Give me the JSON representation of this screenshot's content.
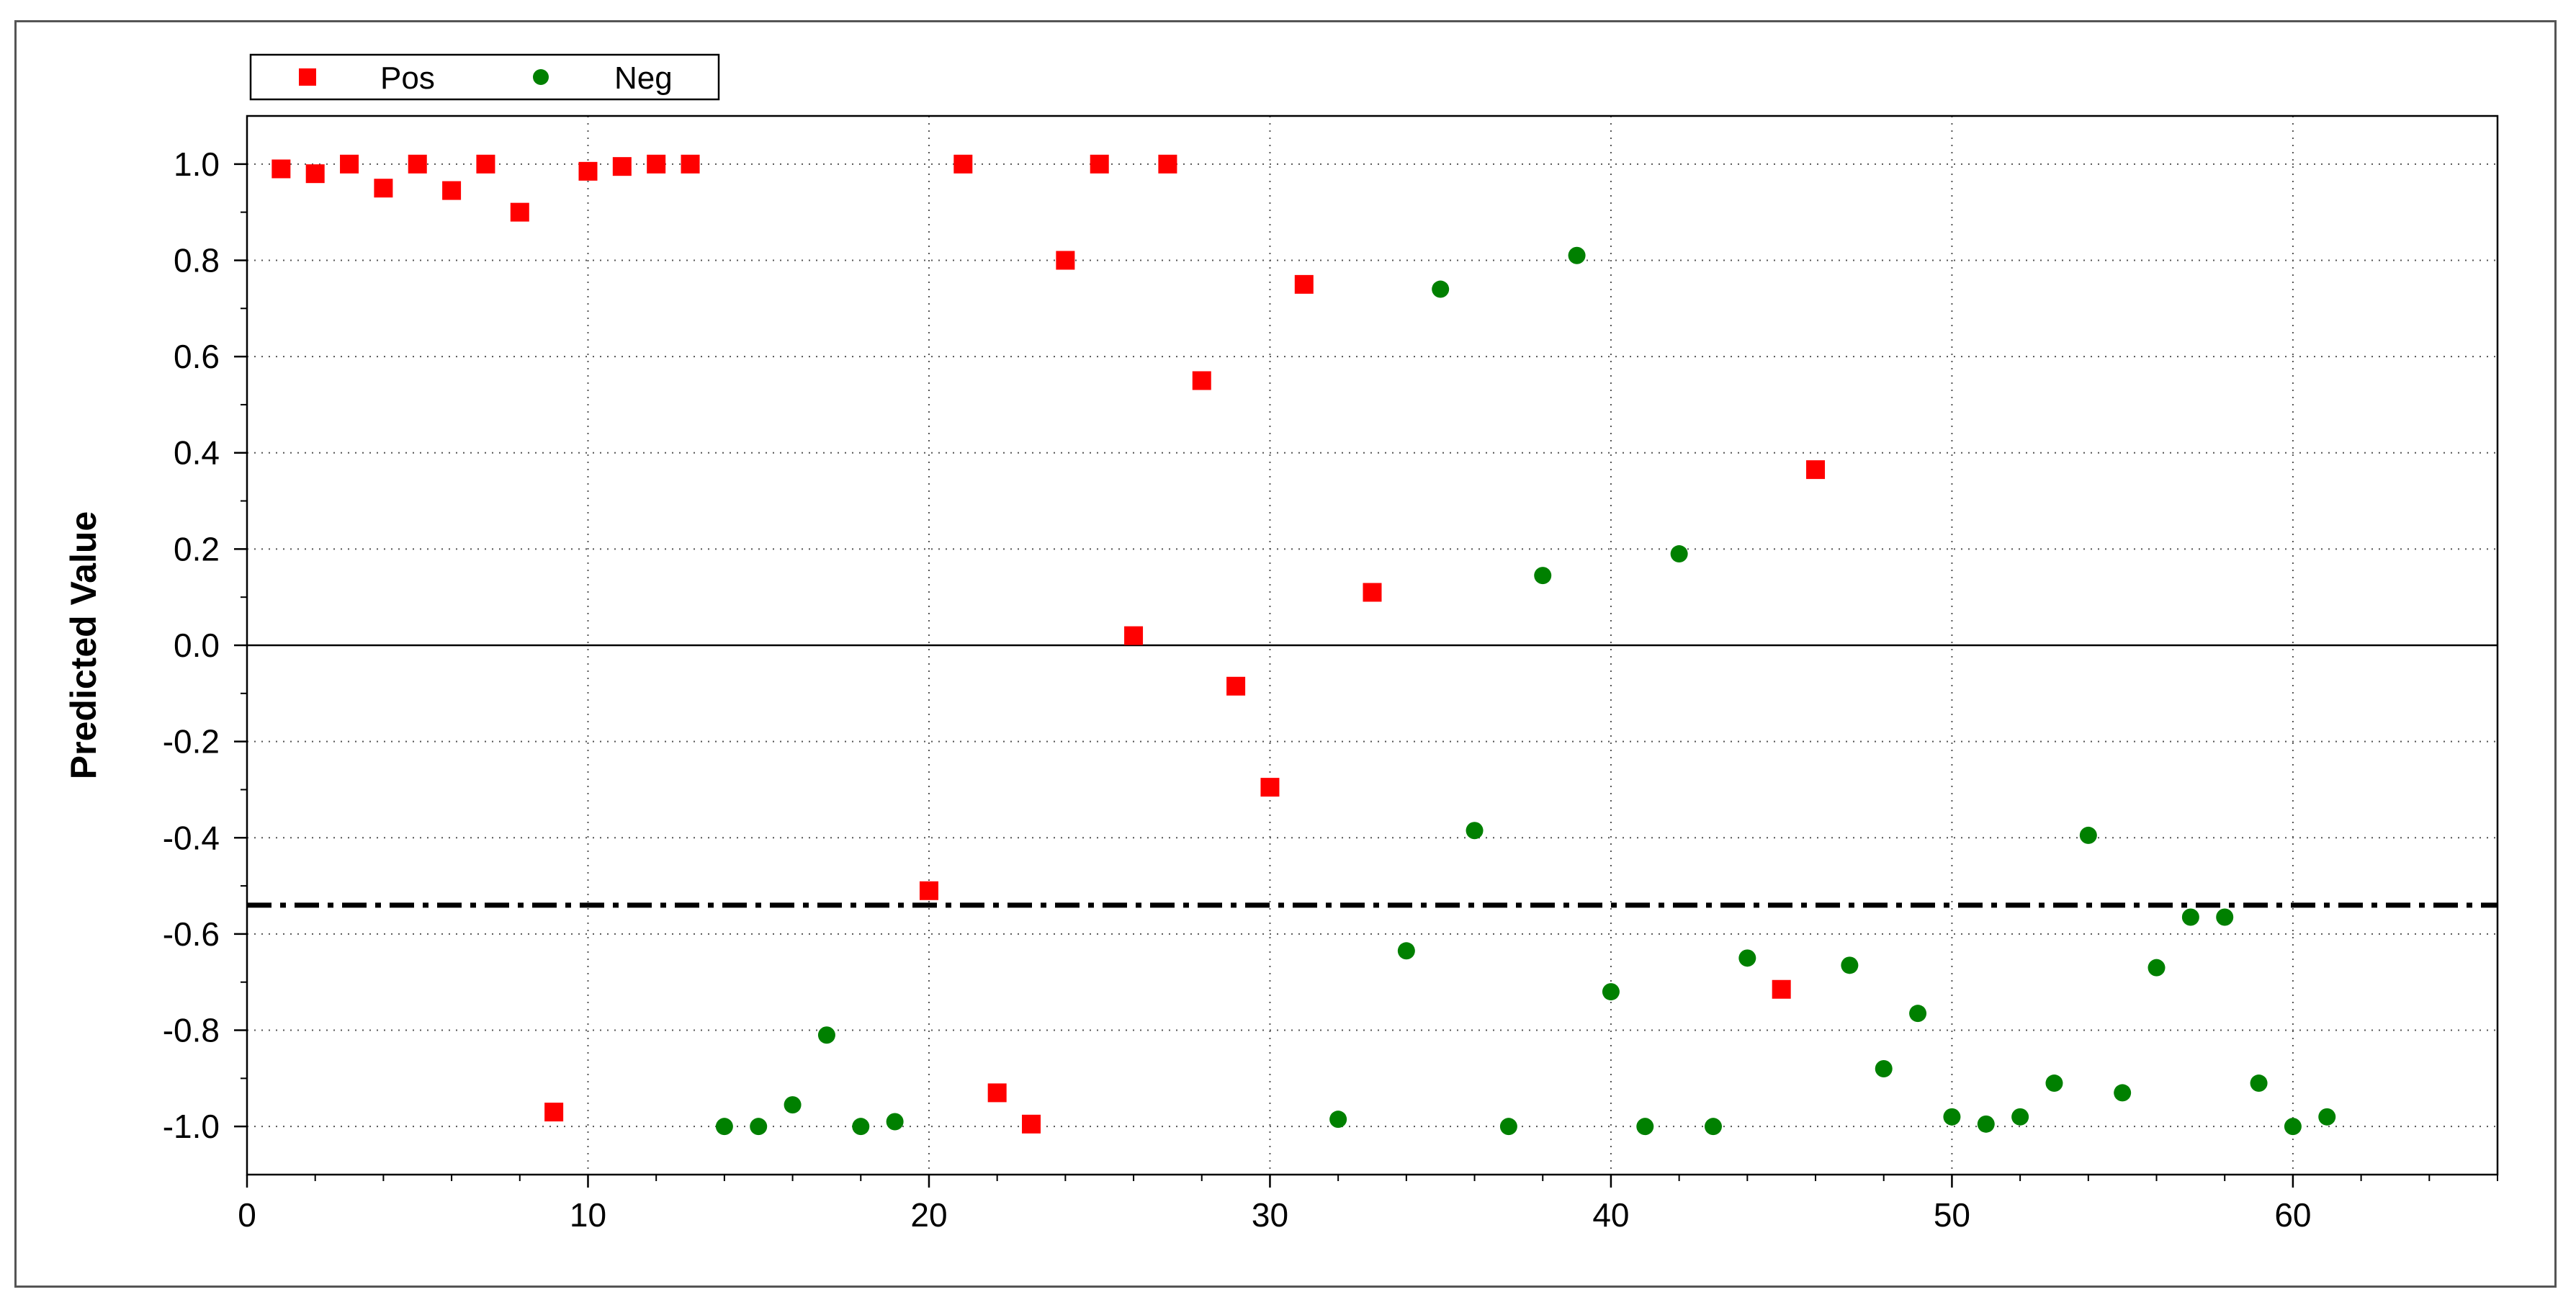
{
  "chart_data": {
    "type": "scatter",
    "title": "",
    "xlabel": "",
    "ylabel": "Predicted Value",
    "xlim": [
      0,
      66
    ],
    "ylim": [
      -1.1,
      1.1
    ],
    "x_ticks": [
      0,
      10,
      20,
      30,
      40,
      50,
      60
    ],
    "x_tick_labels": [
      "0",
      "10",
      "20",
      "30",
      "40",
      "50",
      "60"
    ],
    "y_ticks": [
      1.0,
      0.8,
      0.6,
      0.4,
      0.2,
      0.0,
      -0.2,
      -0.4,
      -0.6,
      -0.8,
      -1.0
    ],
    "y_tick_labels": [
      "1.0",
      "0.8",
      "0.6",
      "0.4",
      "0.2",
      "0.0",
      "-0.2",
      "-0.4",
      "-0.6",
      "-0.8",
      "-1.0"
    ],
    "grid": true,
    "legend_position": "top-left",
    "zero_line": 0.0,
    "threshold_line": -0.54,
    "series": [
      {
        "name": "Pos",
        "marker": "square",
        "color": "#ff0000",
        "points": [
          [
            1,
            0.99
          ],
          [
            2,
            0.98
          ],
          [
            3,
            1.0
          ],
          [
            4,
            0.95
          ],
          [
            5,
            1.0
          ],
          [
            6,
            0.945
          ],
          [
            7,
            1.0
          ],
          [
            8,
            0.9
          ],
          [
            9,
            -0.97
          ],
          [
            10,
            0.985
          ],
          [
            11,
            0.995
          ],
          [
            12,
            1.0
          ],
          [
            13,
            1.0
          ],
          [
            20,
            -0.51
          ],
          [
            21,
            1.0
          ],
          [
            22,
            -0.93
          ],
          [
            23,
            -0.995
          ],
          [
            24,
            0.8
          ],
          [
            25,
            1.0
          ],
          [
            26,
            0.02
          ],
          [
            27,
            1.0
          ],
          [
            28,
            0.55
          ],
          [
            29,
            -0.085
          ],
          [
            30,
            -0.295
          ],
          [
            31,
            0.75
          ],
          [
            33,
            0.11
          ],
          [
            45,
            -0.715
          ],
          [
            46,
            0.365
          ]
        ]
      },
      {
        "name": "Neg",
        "marker": "circle",
        "color": "#008000",
        "points": [
          [
            14,
            -1.0
          ],
          [
            15,
            -1.0
          ],
          [
            16,
            -0.955
          ],
          [
            17,
            -0.81
          ],
          [
            18,
            -1.0
          ],
          [
            19,
            -0.99
          ],
          [
            32,
            -0.985
          ],
          [
            34,
            -0.635
          ],
          [
            35,
            0.74
          ],
          [
            36,
            -0.385
          ],
          [
            37,
            -1.0
          ],
          [
            38,
            0.145
          ],
          [
            39,
            0.81
          ],
          [
            40,
            -0.72
          ],
          [
            41,
            -1.0
          ],
          [
            42,
            0.19
          ],
          [
            43,
            -1.0
          ],
          [
            44,
            -0.65
          ],
          [
            47,
            -0.665
          ],
          [
            48,
            -0.88
          ],
          [
            49,
            -0.765
          ],
          [
            50,
            -0.98
          ],
          [
            51,
            -0.995
          ],
          [
            52,
            -0.98
          ],
          [
            53,
            -0.91
          ],
          [
            54,
            -0.395
          ],
          [
            55,
            -0.93
          ],
          [
            56,
            -0.67
          ],
          [
            57,
            -0.565
          ],
          [
            58,
            -0.565
          ],
          [
            59,
            -0.91
          ],
          [
            60,
            -1.0
          ],
          [
            61,
            -0.98
          ]
        ]
      }
    ]
  }
}
